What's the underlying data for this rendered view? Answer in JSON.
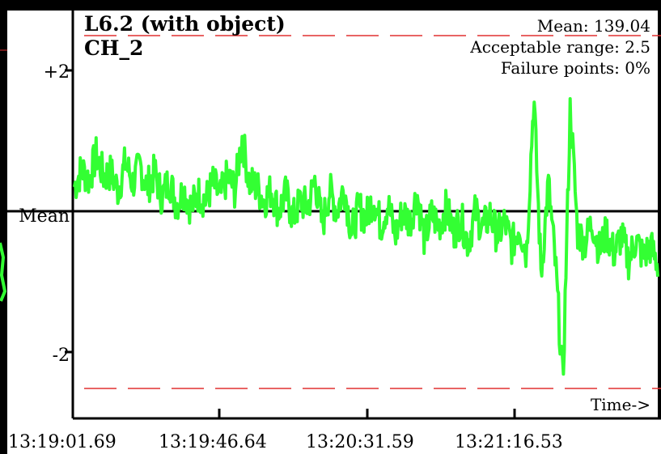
{
  "chart_data": {
    "type": "line",
    "title": "L6.2 (with object)",
    "subtitle": "CH_2",
    "stats": {
      "mean": "Mean: 139.04",
      "range": "Acceptable range: 2.5",
      "failure": "Failure points: 0%"
    },
    "xlabel": "Time->",
    "ylabel": "",
    "x_ticks": [
      "13:19:01.69",
      "13:19:46.64",
      "13:20:31.59",
      "13:21:16.53"
    ],
    "y_ticks": [
      {
        "label": "+2",
        "value": 2
      },
      {
        "label": "Mean",
        "value": 0
      },
      {
        "label": "-2",
        "value": -2
      }
    ],
    "ylim": [
      -2.6,
      2.5
    ],
    "acceptable_band": [
      2.5,
      -2.5
    ],
    "series": [
      {
        "color": "#33ff33",
        "y": [
          0.35,
          0.6,
          0.45,
          0.8,
          0.5,
          0.55,
          0.3,
          0.7,
          0.4,
          0.65,
          0.35,
          0.55,
          0.2,
          0.45,
          0.1,
          0.3,
          0.05,
          0.25,
          0.15,
          0.4,
          0.2,
          0.5,
          0.3,
          1.05,
          0.4,
          0.35,
          0.15,
          0.3,
          0.0,
          0.25,
          -0.1,
          0.15,
          0.05,
          0.45,
          -0.2,
          0.3,
          0.0,
          0.35,
          -0.3,
          0.05,
          -0.1,
          0.2,
          -0.2,
          0.1,
          -0.35,
          0.0,
          -0.15,
          0.25,
          -0.4,
          -0.05,
          -0.2,
          0.05,
          -0.3,
          -0.1,
          -0.45,
          0.0,
          -0.25,
          -0.05,
          -0.35,
          -0.15,
          -0.5,
          -0.2,
          -0.6,
          1.65,
          -0.9,
          0.4,
          -0.8,
          -2.45,
          1.5,
          -0.3,
          -0.45,
          -0.15,
          -0.55,
          -0.3,
          -0.6,
          -0.35,
          -0.7,
          -0.4,
          -0.65,
          -0.5,
          -0.75
        ]
      }
    ],
    "grid": false,
    "legend": "none"
  }
}
